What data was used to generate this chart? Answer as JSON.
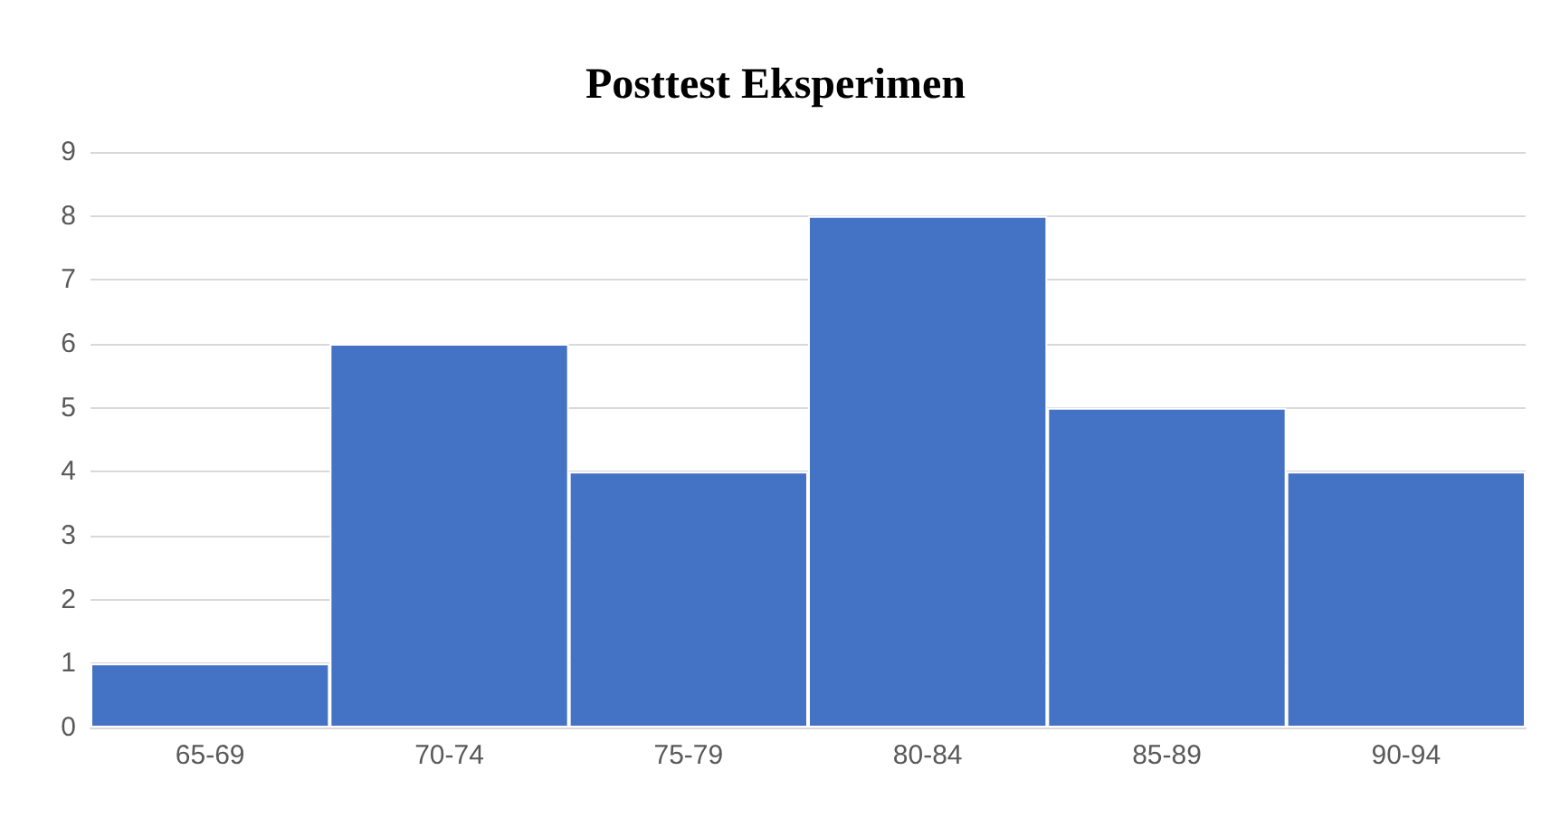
{
  "chart_data": {
    "type": "bar",
    "title": "Posttest Eksperimen",
    "categories": [
      "65-69",
      "70-74",
      "75-79",
      "80-84",
      "85-89",
      "90-94"
    ],
    "values": [
      1,
      6,
      4,
      8,
      5,
      4
    ],
    "color": "#4472c4",
    "ylim": [
      0,
      9
    ],
    "yticks": [
      0,
      1,
      2,
      3,
      4,
      5,
      6,
      7,
      8,
      9
    ],
    "grid": "y"
  }
}
